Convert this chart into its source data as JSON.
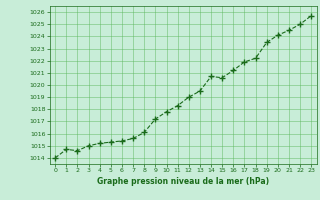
{
  "x": [
    0,
    1,
    2,
    3,
    4,
    5,
    6,
    7,
    8,
    9,
    10,
    11,
    12,
    13,
    14,
    15,
    16,
    17,
    18,
    19,
    20,
    21,
    22,
    23
  ],
  "y": [
    1014.0,
    1014.7,
    1014.6,
    1015.0,
    1015.2,
    1015.3,
    1015.4,
    1015.6,
    1016.1,
    1017.2,
    1017.8,
    1018.3,
    1019.0,
    1019.5,
    1020.7,
    1020.6,
    1021.2,
    1021.9,
    1022.2,
    1023.5,
    1024.1,
    1024.5,
    1025.0,
    1025.7
  ],
  "line_color": "#1a6b1a",
  "marker_color": "#1a6b1a",
  "bg_color": "#c8edd8",
  "grid_color": "#5ab55a",
  "xlabel": "Graphe pression niveau de la mer (hPa)",
  "xlabel_color": "#1a6b1a",
  "tick_color": "#1a6b1a",
  "ylim_min": 1013.5,
  "ylim_max": 1026.5,
  "xlim_min": -0.5,
  "xlim_max": 23.5,
  "yticks": [
    1014,
    1015,
    1016,
    1017,
    1018,
    1019,
    1020,
    1021,
    1022,
    1023,
    1024,
    1025,
    1026
  ],
  "xticks": [
    0,
    1,
    2,
    3,
    4,
    5,
    6,
    7,
    8,
    9,
    10,
    11,
    12,
    13,
    14,
    15,
    16,
    17,
    18,
    19,
    20,
    21,
    22,
    23
  ]
}
